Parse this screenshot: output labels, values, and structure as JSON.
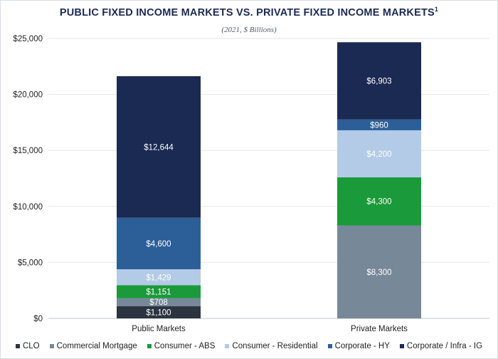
{
  "chart_data": {
    "type": "bar",
    "stacked": true,
    "title": "PUBLIC FIXED INCOME MARKETS VS. PRIVATE FIXED INCOME MARKETS",
    "title_superscript": "1",
    "subtitle": "(2021, $ Billions)",
    "categories": [
      "Public Markets",
      "Private Markets"
    ],
    "ylim": [
      0,
      25000
    ],
    "yticks": [
      0,
      5000,
      10000,
      15000,
      20000,
      25000
    ],
    "ytick_labels": [
      "$0",
      "$5,000",
      "$10,000",
      "$15,000",
      "$20,000",
      "$25,000"
    ],
    "grid": true,
    "legend_position": "bottom",
    "series": [
      {
        "name": "CLO",
        "color": "#2b3440",
        "values": [
          1100,
          0
        ],
        "labels": [
          "$1,100",
          ""
        ]
      },
      {
        "name": "Commercial Mortgage",
        "color": "#778899",
        "values": [
          708,
          8300
        ],
        "labels": [
          "$708",
          "$8,300"
        ]
      },
      {
        "name": "Consumer - ABS",
        "color": "#1a9a3a",
        "values": [
          1151,
          4300
        ],
        "labels": [
          "$1,151",
          "$4,300"
        ]
      },
      {
        "name": "Consumer - Residential",
        "color": "#b3cbe6",
        "values": [
          1429,
          4200
        ],
        "labels": [
          "$1,429",
          "$4,200"
        ]
      },
      {
        "name": "Corporate - HY",
        "color": "#2c5f98",
        "values": [
          4600,
          960
        ],
        "labels": [
          "$4,600",
          "$960"
        ]
      },
      {
        "name": "Corporate / Infra - IG",
        "color": "#1b2a52",
        "values": [
          12644,
          6903
        ],
        "labels": [
          "$12,644",
          "$6,903"
        ]
      }
    ]
  }
}
